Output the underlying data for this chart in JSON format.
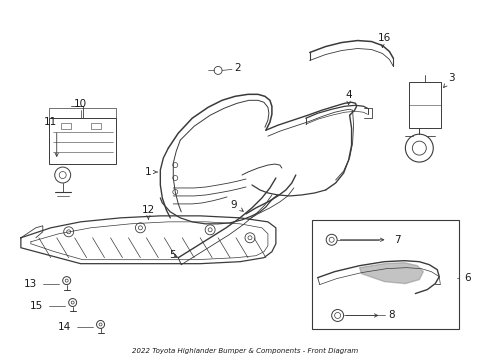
{
  "title": "2022 Toyota Highlander Bumper & Components - Front Diagram",
  "background_color": "#ffffff",
  "line_color": "#3a3a3a",
  "text_color": "#1a1a1a",
  "fig_w": 4.9,
  "fig_h": 3.6,
  "dpi": 100
}
